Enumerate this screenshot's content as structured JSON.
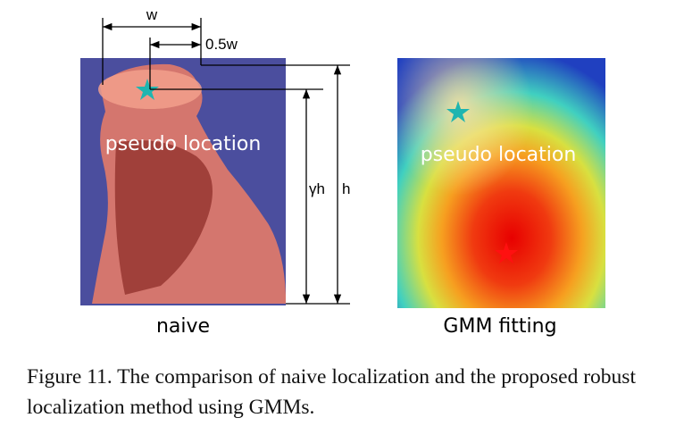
{
  "panels": [
    {
      "annotation": "pseudo location",
      "label": "naive"
    },
    {
      "annotation": "pseudo location",
      "label": "GMM fitting"
    }
  ],
  "dimensions": {
    "width": "w",
    "half_width": "0.5w",
    "scaled_height": "γh",
    "height": "h"
  },
  "caption": "Figure 11. The comparison of naive localization and the proposed robust localization method using GMMs."
}
